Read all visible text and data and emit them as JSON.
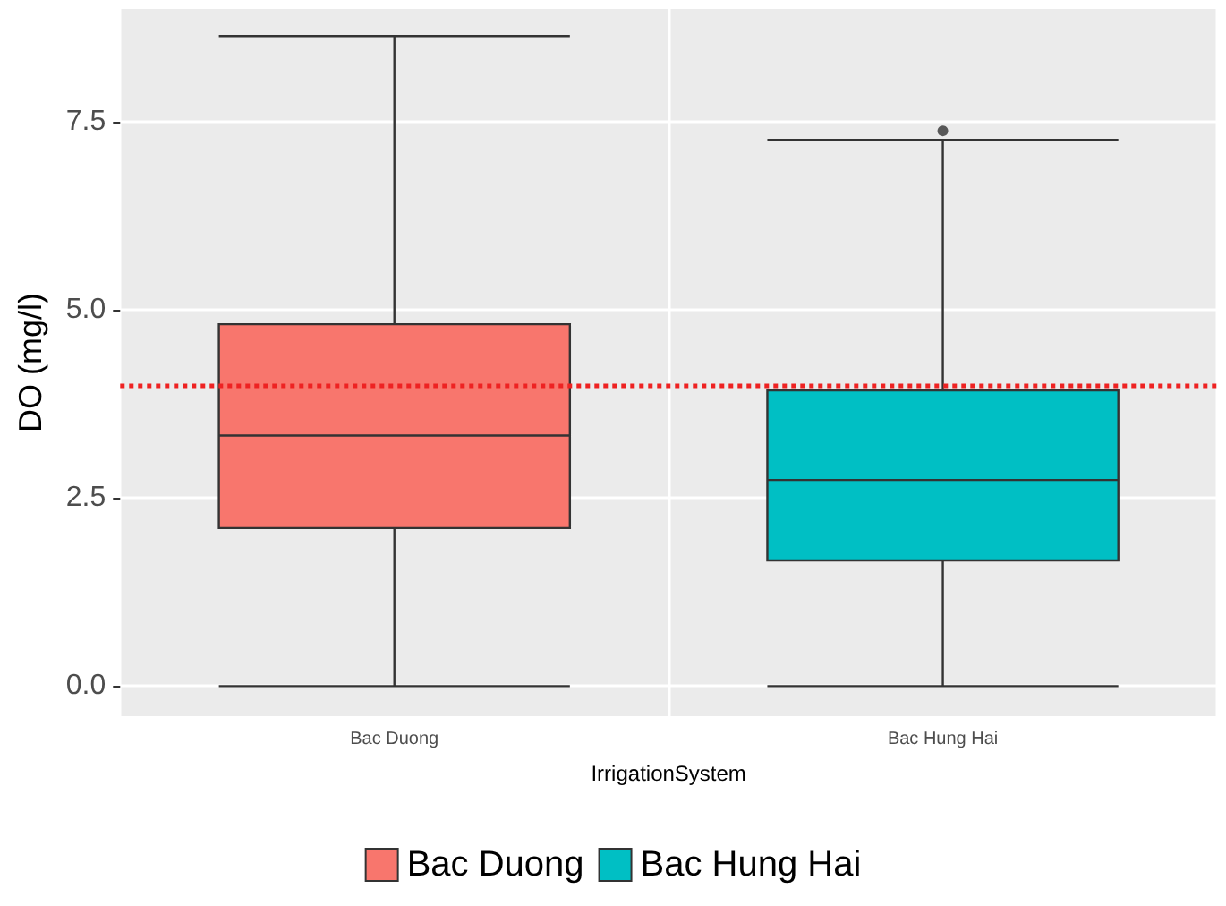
{
  "chart_data": {
    "type": "box",
    "categories": [
      "Bac Duong",
      "Bac Hung Hai"
    ],
    "series": [
      {
        "name": "Bac Duong",
        "color": "#f8766d",
        "boxes": [
          {
            "low": 0.0,
            "q1": 2.1,
            "median": 3.33,
            "q3": 4.81,
            "high": 8.64
          },
          null
        ]
      },
      {
        "name": "Bac Hung Hai",
        "color": "#00bfc4",
        "boxes": [
          null,
          {
            "low": 0.0,
            "q1": 1.67,
            "median": 2.74,
            "q3": 3.93,
            "high": 7.26,
            "outliers": [
              7.38
            ]
          }
        ]
      }
    ],
    "xlabel": "IrrigationSystem",
    "ylabel": "DO (mg/l)",
    "ylim": [
      -0.4,
      9.0
    ],
    "yticks": [
      {
        "value": 0,
        "label": "0.0"
      },
      {
        "value": 2.5,
        "label": "2.5"
      },
      {
        "value": 5,
        "label": "5.0"
      },
      {
        "value": 7.5,
        "label": "7.5"
      }
    ],
    "ref_lines": [
      {
        "axis": "y",
        "value": 4.0,
        "color": "#ee2222",
        "line_style": "dotted"
      }
    ],
    "grid": true,
    "legend": "bottom"
  }
}
